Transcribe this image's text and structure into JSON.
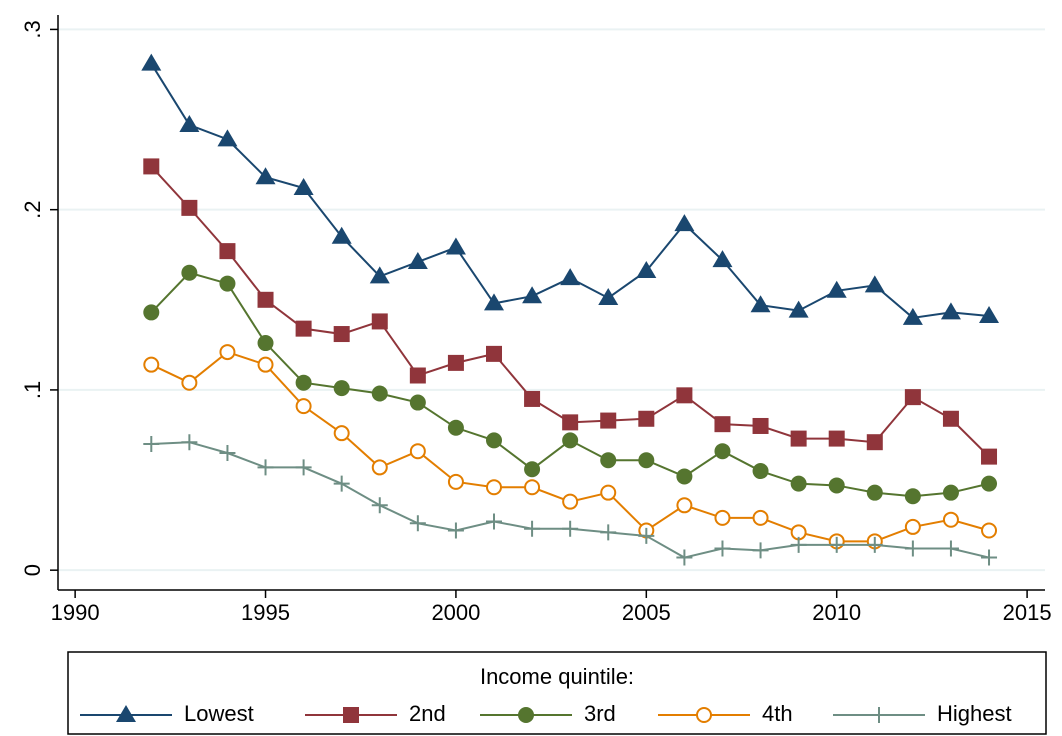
{
  "chart_data": {
    "type": "line",
    "x": [
      1992,
      1993,
      1994,
      1995,
      1996,
      1997,
      1998,
      1999,
      2000,
      2001,
      2002,
      2003,
      2004,
      2005,
      2006,
      2007,
      2008,
      2009,
      2010,
      2011,
      2012,
      2013,
      2014
    ],
    "series": [
      {
        "name": "Lowest",
        "color": "#1a476f",
        "marker": "triangle",
        "values": [
          0.281,
          0.247,
          0.239,
          0.218,
          0.212,
          0.185,
          0.163,
          0.171,
          0.179,
          0.148,
          0.152,
          0.162,
          0.151,
          0.166,
          0.192,
          0.172,
          0.147,
          0.144,
          0.155,
          0.158,
          0.14,
          0.143,
          0.141
        ]
      },
      {
        "name": "2nd",
        "color": "#90353b",
        "marker": "square",
        "values": [
          0.224,
          0.201,
          0.177,
          0.15,
          0.134,
          0.131,
          0.138,
          0.108,
          0.115,
          0.12,
          0.095,
          0.082,
          0.083,
          0.084,
          0.097,
          0.081,
          0.08,
          0.073,
          0.073,
          0.071,
          0.096,
          0.084,
          0.063
        ]
      },
      {
        "name": "3rd",
        "color": "#55752f",
        "marker": "circle",
        "values": [
          0.143,
          0.165,
          0.159,
          0.126,
          0.104,
          0.101,
          0.098,
          0.093,
          0.079,
          0.072,
          0.056,
          0.072,
          0.061,
          0.061,
          0.052,
          0.066,
          0.055,
          0.048,
          0.047,
          0.043,
          0.041,
          0.043,
          0.048
        ]
      },
      {
        "name": "4th",
        "color": "#e37e00",
        "marker": "hollow-circle",
        "values": [
          0.114,
          0.104,
          0.121,
          0.114,
          0.091,
          0.076,
          0.057,
          0.066,
          0.049,
          0.046,
          0.046,
          0.038,
          0.043,
          0.022,
          0.036,
          0.029,
          0.029,
          0.021,
          0.016,
          0.016,
          0.024,
          0.028,
          0.022
        ]
      },
      {
        "name": "Highest",
        "color": "#6e8e84",
        "marker": "plus",
        "values": [
          0.07,
          0.071,
          0.065,
          0.057,
          0.057,
          0.048,
          0.036,
          0.026,
          0.022,
          0.027,
          0.023,
          0.023,
          0.021,
          0.019,
          0.007,
          0.012,
          0.011,
          0.014,
          0.014,
          0.014,
          0.012,
          0.012,
          0.007
        ]
      }
    ],
    "xlim": [
      1989.55,
      2015.47
    ],
    "xticks": [
      1990,
      1995,
      2000,
      2005,
      2010,
      2015
    ],
    "ylim": [
      -0.011,
      0.308
    ],
    "yticks": [
      0,
      {
        "value": 0.1,
        "label": ".1"
      },
      {
        "value": 0.2,
        "label": ".2"
      },
      {
        "value": 0.3,
        "label": ".3"
      }
    ],
    "grid": true,
    "legend_title": "Income quintile:",
    "legend_position": "bottom"
  }
}
